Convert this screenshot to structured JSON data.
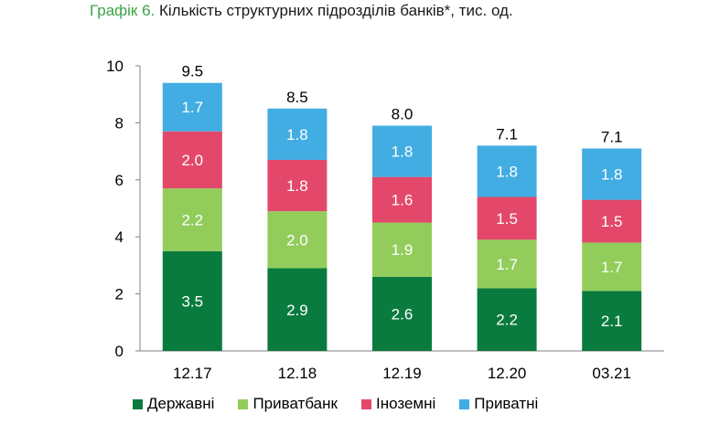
{
  "title": {
    "prefix": "Графік 6.",
    "text": " Кількість структурних підрозділів банків*, тис. од."
  },
  "chart_data": {
    "type": "bar",
    "stacked": true,
    "categories": [
      "12.17",
      "12.18",
      "12.19",
      "12.20",
      "03.21"
    ],
    "series": [
      {
        "name": "Державні",
        "color": "#0a7b3e",
        "values": [
          3.5,
          2.9,
          2.6,
          2.2,
          2.1
        ]
      },
      {
        "name": "Приватбанк",
        "color": "#92cd5c",
        "values": [
          2.2,
          2.0,
          1.9,
          1.7,
          1.7
        ]
      },
      {
        "name": "Іноземні",
        "color": "#e3486a",
        "values": [
          2.0,
          1.8,
          1.6,
          1.5,
          1.5
        ]
      },
      {
        "name": "Приватні",
        "color": "#42ade2",
        "values": [
          1.7,
          1.8,
          1.8,
          1.8,
          1.8
        ]
      }
    ],
    "totals": [
      "9.5",
      "8.5",
      "8.0",
      "7.1",
      "7.1"
    ],
    "ylim": [
      0,
      10
    ],
    "yticks": [
      "0",
      "2",
      "4",
      "6",
      "8",
      "10"
    ],
    "grid": false,
    "legend_position": "bottom"
  }
}
